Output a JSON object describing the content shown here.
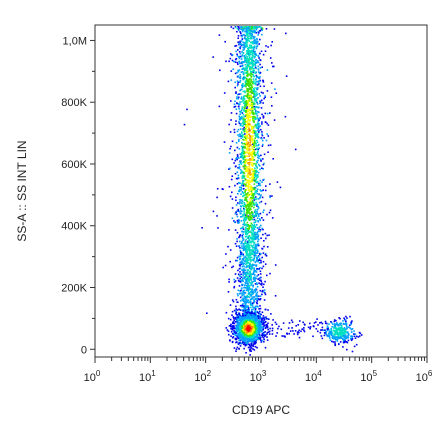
{
  "chart_data": {
    "type": "scatter",
    "subtype": "flow-cytometry-density-dot-plot",
    "title": "",
    "xlabel": "CD19 APC",
    "ylabel": "SS-A :: SS INT LIN",
    "x_scale": "log",
    "xlim": [
      1,
      1000000
    ],
    "ylim": [
      -25000,
      1050000
    ],
    "x_ticks": [
      {
        "value": 1,
        "base": "10",
        "exp": "0"
      },
      {
        "value": 10,
        "base": "10",
        "exp": "1"
      },
      {
        "value": 100,
        "base": "10",
        "exp": "2"
      },
      {
        "value": 1000,
        "base": "10",
        "exp": "3"
      },
      {
        "value": 10000,
        "base": "10",
        "exp": "4"
      },
      {
        "value": 100000,
        "base": "10",
        "exp": "5"
      },
      {
        "value": 1000000,
        "base": "10",
        "exp": "6"
      }
    ],
    "y_ticks": [
      {
        "value": 0,
        "label": "0"
      },
      {
        "value": 200000,
        "label": "200K"
      },
      {
        "value": 400000,
        "label": "400K"
      },
      {
        "value": 600000,
        "label": "600K"
      },
      {
        "value": 800000,
        "label": "800K"
      },
      {
        "value": 1000000,
        "label": "1,0M"
      }
    ],
    "grid": false,
    "legend": "none",
    "color_scale": [
      "#0000ee",
      "#00a0ff",
      "#00e0c0",
      "#40e000",
      "#ffff00",
      "#ff9000",
      "#ff0000"
    ],
    "populations": [
      {
        "description": "CD19-negative column",
        "x_center": 600,
        "x_spread_log": 0.12,
        "y_range": [
          100000,
          1050000
        ],
        "density": "high",
        "peak_color": "#ffff00"
      },
      {
        "description": "CD19-negative low-SS cluster",
        "x_center": 580,
        "y_center": 70000,
        "x_spread_log": 0.13,
        "y_spread": 25000,
        "density": "very high",
        "peak_color": "#ff0000"
      },
      {
        "description": "CD19-positive cluster",
        "x_center": 25000,
        "y_center": 60000,
        "x_spread_log": 0.16,
        "y_spread": 20000,
        "density": "medium",
        "peak_color": "#00e0c0"
      }
    ]
  }
}
